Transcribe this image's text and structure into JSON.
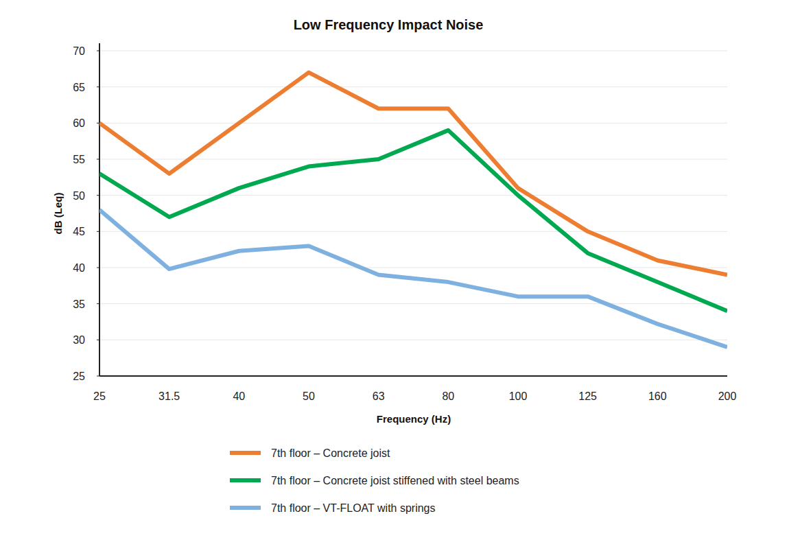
{
  "chart_data": {
    "type": "line",
    "title": "Low Frequency Impact Noise",
    "x_label": "Frequency (Hz)",
    "y_label": "dB (Leq)",
    "categories": [
      "25",
      "31.5",
      "40",
      "50",
      "63",
      "80",
      "100",
      "125",
      "160",
      "200"
    ],
    "series": [
      {
        "name": "7th floor – Concrete joist",
        "color": "#ed7d31",
        "values": [
          60,
          53,
          60,
          67,
          62,
          62,
          51,
          45,
          41,
          39
        ]
      },
      {
        "name": "7th floor – Concrete joist stiffened with steel beams",
        "color": "#00a84f",
        "values": [
          53,
          47,
          51,
          54,
          55,
          59,
          50,
          42,
          38,
          34
        ]
      },
      {
        "name": "7th floor – VT-FLOAT with springs",
        "color": "#7fb1e0",
        "values": [
          48,
          39.8,
          42.3,
          43,
          39,
          38,
          36,
          36,
          32.2,
          29
        ]
      }
    ],
    "ylim": [
      25,
      70
    ],
    "yticks": [
      25,
      30,
      35,
      40,
      45,
      50,
      55,
      60,
      65,
      70
    ],
    "grid": true,
    "legend": "bottom"
  }
}
